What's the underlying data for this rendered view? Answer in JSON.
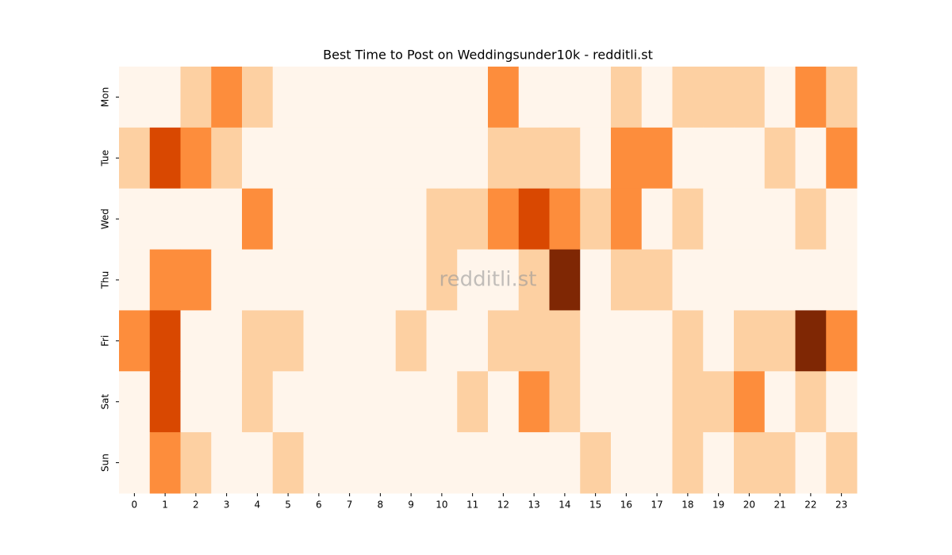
{
  "chart_data": {
    "type": "heatmap",
    "title": "Best Time to Post on Weddingsunder10k - redditli.st",
    "watermark": "redditli.st",
    "x": [
      "0",
      "1",
      "2",
      "3",
      "4",
      "5",
      "6",
      "7",
      "8",
      "9",
      "10",
      "11",
      "12",
      "13",
      "14",
      "15",
      "16",
      "17",
      "18",
      "19",
      "20",
      "21",
      "22",
      "23"
    ],
    "y": [
      "Mon",
      "Tue",
      "Wed",
      "Thu",
      "Fri",
      "Sat",
      "Sun"
    ],
    "values": [
      [
        0,
        0,
        1,
        2,
        1,
        0,
        0,
        0,
        0,
        0,
        0,
        0,
        2,
        0,
        0,
        0,
        1,
        0,
        1,
        1,
        1,
        0,
        2,
        1
      ],
      [
        1,
        3,
        2,
        1,
        0,
        0,
        0,
        0,
        0,
        0,
        0,
        0,
        1,
        1,
        1,
        0,
        2,
        2,
        0,
        0,
        0,
        1,
        0,
        2
      ],
      [
        0,
        0,
        0,
        0,
        2,
        0,
        0,
        0,
        0,
        0,
        1,
        1,
        2,
        3,
        2,
        1,
        2,
        0,
        1,
        0,
        0,
        0,
        1,
        0
      ],
      [
        0,
        2,
        2,
        0,
        0,
        0,
        0,
        0,
        0,
        0,
        1,
        0,
        0,
        1,
        4,
        0,
        1,
        1,
        0,
        0,
        0,
        0,
        0,
        0
      ],
      [
        2,
        3,
        0,
        0,
        1,
        1,
        0,
        0,
        0,
        1,
        0,
        0,
        1,
        1,
        1,
        0,
        0,
        0,
        1,
        0,
        1,
        1,
        4,
        2
      ],
      [
        0,
        3,
        0,
        0,
        1,
        0,
        0,
        0,
        0,
        0,
        0,
        1,
        0,
        2,
        1,
        0,
        0,
        0,
        1,
        1,
        2,
        0,
        1,
        0
      ],
      [
        0,
        2,
        1,
        0,
        0,
        1,
        0,
        0,
        0,
        0,
        0,
        0,
        0,
        0,
        0,
        1,
        0,
        0,
        1,
        0,
        1,
        1,
        0,
        1
      ]
    ],
    "zlim": [
      0,
      4
    ],
    "colormap": [
      "#fff5eb",
      "#fdd0a2",
      "#fd8d3c",
      "#d94801",
      "#7f2704"
    ]
  }
}
